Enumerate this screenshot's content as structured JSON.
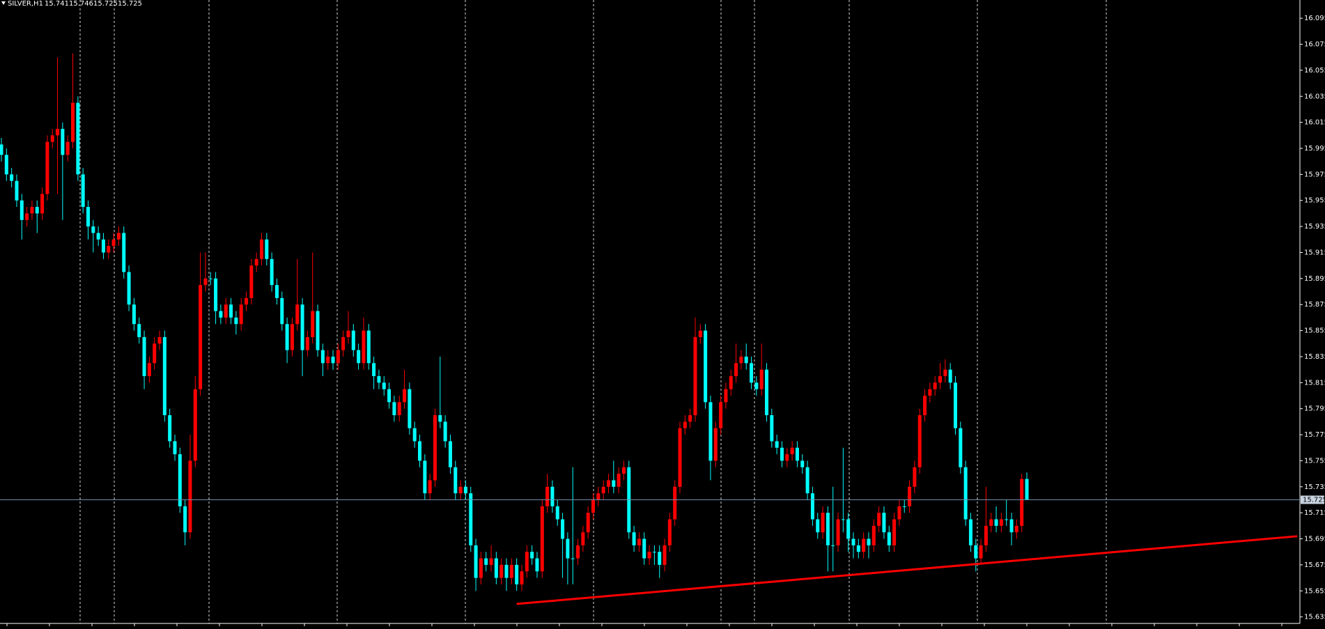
{
  "chart_data": {
    "type": "candlestick",
    "symbol": "SILVER,H1",
    "header_values": [
      15.741,
      15.746,
      15.725,
      15.725
    ],
    "up_color": "#ff0000",
    "down_color": "#00ffff",
    "ylim": [
      15.63,
      16.109
    ],
    "yticks": [
      16.095,
      16.075,
      16.055,
      16.035,
      16.015,
      15.995,
      15.975,
      15.955,
      15.935,
      15.915,
      15.895,
      15.875,
      15.855,
      15.835,
      15.815,
      15.795,
      15.775,
      15.755,
      15.735,
      15.715,
      15.695,
      15.675,
      15.655,
      15.635
    ],
    "price_line": 15.725,
    "price_line_color": "#6f8faf",
    "trendline": {
      "color": "#ff0000",
      "start": {
        "index": 101,
        "price": 15.645
      },
      "end": {
        "index": 254,
        "price": 15.697
      }
    },
    "open": [
      15.998,
      15.99,
      15.975,
      15.97,
      15.955,
      15.94,
      15.945,
      15.95,
      15.945,
      15.96,
      16.0,
      16.005,
      16.01,
      15.99,
      16.0,
      16.03,
      15.975,
      15.95,
      15.935,
      15.93,
      15.925,
      15.915,
      15.92,
      15.925,
      15.93,
      15.9,
      15.875,
      15.86,
      15.85,
      15.82,
      15.83,
      15.845,
      15.85,
      15.79,
      15.77,
      15.76,
      15.72,
      15.7,
      15.755,
      15.81,
      15.89,
      15.895,
      15.895,
      15.87,
      15.865,
      15.875,
      15.865,
      15.86,
      15.875,
      15.88,
      15.905,
      15.91,
      15.925,
      15.91,
      15.89,
      15.88,
      15.86,
      15.84,
      15.86,
      15.875,
      15.84,
      15.85,
      15.87,
      15.84,
      15.83,
      15.835,
      15.83,
      15.84,
      15.85,
      15.855,
      15.84,
      15.83,
      15.855,
      15.83,
      15.82,
      15.815,
      15.81,
      15.8,
      15.79,
      15.8,
      15.81,
      15.78,
      15.77,
      15.755,
      15.73,
      15.74,
      15.79,
      15.785,
      15.77,
      15.75,
      15.73,
      15.735,
      15.73,
      15.69,
      15.665,
      15.68,
      15.675,
      15.68,
      15.665,
      15.675,
      15.665,
      15.675,
      15.66,
      15.67,
      15.685,
      15.68,
      15.67,
      15.72,
      15.735,
      15.72,
      15.71,
      15.695,
      15.68,
      15.68,
      15.69,
      15.7,
      15.715,
      15.725,
      15.73,
      15.735,
      15.74,
      15.735,
      15.745,
      15.75,
      15.7,
      15.69,
      15.695,
      15.68,
      15.685,
      15.685,
      15.675,
      15.69,
      15.71,
      15.735,
      15.78,
      15.785,
      15.79,
      15.85,
      15.855,
      15.8,
      15.755,
      15.78,
      15.8,
      15.81,
      15.82,
      15.83,
      15.835,
      15.83,
      15.815,
      15.81,
      15.825,
      15.79,
      15.77,
      15.765,
      15.755,
      15.76,
      15.765,
      15.755,
      15.75,
      15.73,
      15.71,
      15.7,
      15.715,
      15.69,
      15.69,
      15.71,
      15.71,
      15.695,
      15.69,
      15.685,
      15.695,
      15.69,
      15.705,
      15.715,
      15.7,
      15.69,
      15.71,
      15.72,
      15.72,
      15.735,
      15.75,
      15.79,
      15.805,
      15.81,
      15.815,
      15.82,
      15.825,
      15.815,
      15.78,
      15.75,
      15.71,
      15.69,
      15.68,
      15.69,
      15.705,
      15.71,
      15.705,
      15.71,
      15.71,
      15.7,
      15.705,
      15.741
    ],
    "high": [
      16.003,
      15.995,
      15.98,
      15.975,
      15.96,
      15.95,
      15.955,
      15.955,
      15.965,
      16.005,
      16.01,
      16.065,
      16.015,
      16.005,
      16.068,
      16.035,
      15.98,
      15.955,
      15.94,
      15.935,
      15.93,
      15.925,
      15.93,
      15.935,
      15.935,
      15.905,
      15.88,
      15.865,
      15.855,
      15.835,
      15.85,
      15.855,
      15.855,
      15.795,
      15.775,
      15.765,
      15.725,
      15.775,
      15.82,
      15.915,
      15.915,
      15.9,
      15.9,
      15.875,
      15.88,
      15.88,
      15.87,
      15.88,
      15.885,
      15.91,
      15.915,
      15.93,
      15.93,
      15.915,
      15.895,
      15.885,
      15.865,
      15.865,
      15.91,
      15.88,
      15.855,
      15.915,
      15.875,
      15.845,
      15.84,
      15.84,
      15.845,
      15.855,
      15.87,
      15.86,
      15.845,
      15.865,
      15.86,
      15.835,
      15.825,
      15.82,
      15.815,
      15.805,
      15.805,
      15.825,
      15.815,
      15.785,
      15.775,
      15.76,
      15.745,
      15.795,
      15.835,
      15.79,
      15.775,
      15.755,
      15.74,
      15.74,
      15.735,
      15.695,
      15.685,
      15.685,
      15.69,
      15.685,
      15.68,
      15.68,
      15.68,
      15.68,
      15.675,
      15.69,
      15.69,
      15.685,
      15.725,
      15.745,
      15.74,
      15.725,
      15.715,
      15.7,
      15.75,
      15.695,
      15.705,
      15.72,
      15.73,
      15.735,
      15.74,
      15.745,
      15.755,
      15.75,
      15.755,
      15.755,
      15.705,
      15.7,
      15.7,
      15.69,
      15.69,
      15.69,
      15.695,
      15.715,
      15.74,
      15.785,
      15.79,
      15.795,
      15.865,
      15.86,
      15.86,
      15.805,
      15.785,
      15.805,
      15.815,
      15.825,
      15.845,
      15.84,
      15.845,
      15.835,
      15.82,
      15.845,
      15.83,
      15.795,
      15.775,
      15.77,
      15.765,
      15.77,
      15.77,
      15.76,
      15.755,
      15.735,
      15.715,
      15.72,
      15.72,
      15.735,
      15.715,
      15.765,
      15.715,
      15.7,
      15.695,
      15.7,
      15.7,
      15.71,
      15.72,
      15.72,
      15.705,
      15.715,
      15.725,
      15.725,
      15.74,
      15.755,
      15.795,
      15.81,
      15.815,
      15.82,
      15.83,
      15.833,
      15.83,
      15.82,
      15.785,
      15.755,
      15.715,
      15.695,
      15.695,
      15.735,
      15.715,
      15.72,
      15.715,
      15.725,
      15.715,
      15.71,
      15.745,
      15.746
    ],
    "low": [
      15.985,
      15.97,
      15.965,
      15.95,
      15.925,
      15.935,
      15.94,
      15.93,
      15.94,
      15.955,
      15.995,
      15.96,
      15.94,
      15.985,
      15.995,
      15.97,
      15.945,
      15.925,
      15.915,
      15.92,
      15.91,
      15.91,
      15.915,
      15.92,
      15.895,
      15.87,
      15.855,
      15.845,
      15.81,
      15.815,
      15.825,
      15.84,
      15.785,
      15.765,
      15.755,
      15.715,
      15.69,
      15.695,
      15.75,
      15.805,
      15.885,
      15.89,
      15.86,
      15.86,
      15.86,
      15.86,
      15.852,
      15.855,
      15.87,
      15.875,
      15.9,
      15.905,
      15.905,
      15.885,
      15.875,
      15.855,
      15.83,
      15.835,
      15.855,
      15.82,
      15.835,
      15.845,
      15.835,
      15.82,
      15.825,
      15.825,
      15.825,
      15.835,
      15.845,
      15.835,
      15.825,
      15.825,
      15.825,
      15.81,
      15.81,
      15.805,
      15.795,
      15.785,
      15.785,
      15.795,
      15.775,
      15.765,
      15.75,
      15.725,
      15.725,
      15.735,
      15.78,
      15.765,
      15.745,
      15.725,
      15.725,
      15.725,
      15.685,
      15.655,
      15.66,
      15.67,
      15.67,
      15.66,
      15.66,
      15.655,
      15.66,
      15.655,
      15.655,
      15.665,
      15.675,
      15.665,
      15.665,
      15.715,
      15.715,
      15.705,
      15.665,
      15.66,
      15.66,
      15.675,
      15.685,
      15.695,
      15.71,
      15.72,
      15.725,
      15.73,
      15.73,
      15.73,
      15.74,
      15.695,
      15.685,
      15.685,
      15.675,
      15.675,
      15.675,
      15.665,
      15.67,
      15.685,
      15.705,
      15.73,
      15.775,
      15.78,
      15.785,
      15.845,
      15.795,
      15.74,
      15.75,
      15.775,
      15.795,
      15.805,
      15.815,
      15.825,
      15.825,
      15.81,
      15.805,
      15.805,
      15.785,
      15.765,
      15.76,
      15.75,
      15.75,
      15.755,
      15.75,
      15.745,
      15.725,
      15.705,
      15.695,
      15.695,
      15.67,
      15.67,
      15.685,
      15.7,
      15.685,
      15.68,
      15.68,
      15.68,
      15.68,
      15.685,
      15.7,
      15.695,
      15.685,
      15.685,
      15.705,
      15.715,
      15.715,
      15.73,
      15.745,
      15.785,
      15.8,
      15.805,
      15.81,
      15.815,
      15.81,
      15.775,
      15.745,
      15.705,
      15.685,
      15.67,
      15.675,
      15.685,
      15.7,
      15.7,
      15.7,
      15.705,
      15.69,
      15.695,
      15.7,
      15.725
    ],
    "close": [
      15.99,
      15.975,
      15.97,
      15.955,
      15.94,
      15.945,
      15.95,
      15.945,
      15.96,
      16.0,
      16.005,
      16.01,
      15.99,
      16.0,
      16.03,
      15.975,
      15.95,
      15.935,
      15.93,
      15.925,
      15.915,
      15.92,
      15.925,
      15.93,
      15.9,
      15.875,
      15.86,
      15.85,
      15.82,
      15.83,
      15.845,
      15.85,
      15.79,
      15.77,
      15.76,
      15.72,
      15.7,
      15.755,
      15.81,
      15.89,
      15.895,
      15.895,
      15.87,
      15.865,
      15.875,
      15.865,
      15.86,
      15.875,
      15.88,
      15.905,
      15.91,
      15.925,
      15.91,
      15.89,
      15.88,
      15.86,
      15.84,
      15.86,
      15.875,
      15.84,
      15.85,
      15.87,
      15.84,
      15.83,
      15.835,
      15.83,
      15.84,
      15.85,
      15.855,
      15.84,
      15.83,
      15.855,
      15.83,
      15.82,
      15.815,
      15.81,
      15.8,
      15.79,
      15.8,
      15.81,
      15.78,
      15.77,
      15.755,
      15.73,
      15.74,
      15.79,
      15.785,
      15.77,
      15.75,
      15.73,
      15.735,
      15.73,
      15.69,
      15.665,
      15.68,
      15.675,
      15.68,
      15.665,
      15.675,
      15.665,
      15.675,
      15.66,
      15.67,
      15.685,
      15.68,
      15.67,
      15.72,
      15.735,
      15.72,
      15.71,
      15.695,
      15.68,
      15.68,
      15.69,
      15.7,
      15.715,
      15.725,
      15.73,
      15.735,
      15.74,
      15.735,
      15.745,
      15.75,
      15.7,
      15.69,
      15.695,
      15.68,
      15.685,
      15.685,
      15.675,
      15.69,
      15.71,
      15.735,
      15.78,
      15.785,
      15.79,
      15.85,
      15.855,
      15.8,
      15.755,
      15.78,
      15.8,
      15.81,
      15.82,
      15.83,
      15.835,
      15.83,
      15.815,
      15.81,
      15.825,
      15.79,
      15.77,
      15.765,
      15.755,
      15.76,
      15.765,
      15.755,
      15.75,
      15.73,
      15.71,
      15.7,
      15.715,
      15.69,
      15.69,
      15.71,
      15.71,
      15.695,
      15.69,
      15.685,
      15.695,
      15.69,
      15.705,
      15.715,
      15.7,
      15.69,
      15.71,
      15.72,
      15.72,
      15.735,
      15.75,
      15.79,
      15.805,
      15.81,
      15.815,
      15.82,
      15.825,
      15.815,
      15.78,
      15.75,
      15.71,
      15.69,
      15.68,
      15.69,
      15.705,
      15.71,
      15.705,
      15.71,
      15.71,
      15.7,
      15.705,
      15.741,
      15.725
    ]
  }
}
